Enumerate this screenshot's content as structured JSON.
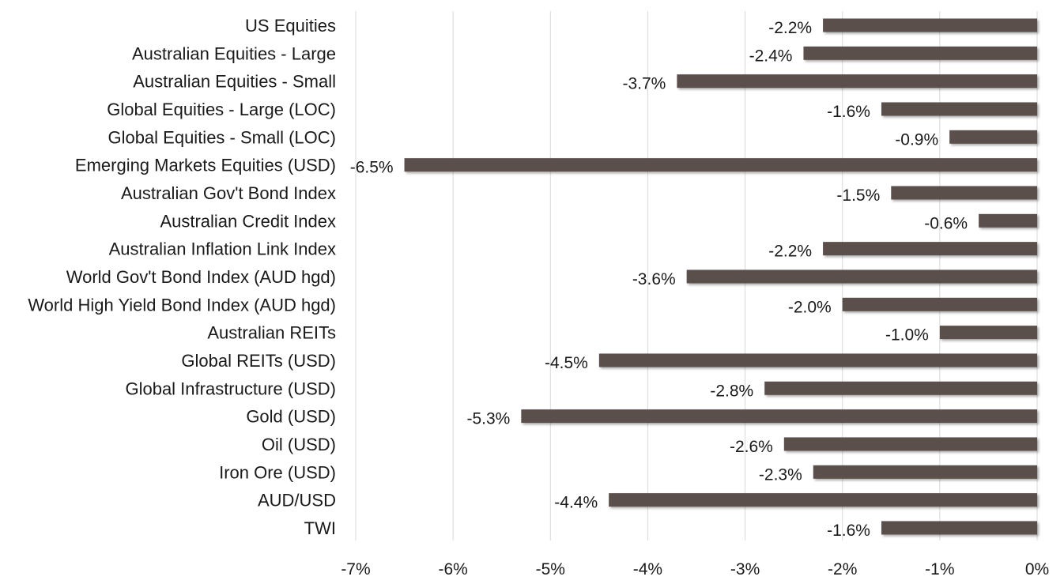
{
  "chart_data": {
    "type": "bar",
    "orientation": "horizontal",
    "categories": [
      "US Equities",
      "Australian Equities - Large",
      "Australian Equities - Small",
      "Global Equities - Large (LOC)",
      "Global Equities - Small (LOC)",
      "Emerging Markets Equities (USD)",
      "Australian Gov't Bond Index",
      "Australian Credit Index",
      "Australian Inflation Link Index",
      "World Gov't Bond Index (AUD hgd)",
      "World High Yield Bond Index (AUD hgd)",
      "Australian REITs",
      "Global REITs (USD)",
      "Global Infrastructure (USD)",
      "Gold (USD)",
      "Oil (USD)",
      "Iron Ore (USD)",
      "AUD/USD",
      "TWI"
    ],
    "values": [
      -2.2,
      -2.4,
      -3.7,
      -1.6,
      -0.9,
      -6.5,
      -1.5,
      -0.6,
      -2.2,
      -3.6,
      -2.0,
      -1.0,
      -4.5,
      -2.8,
      -5.3,
      -2.6,
      -2.3,
      -4.4,
      -1.6
    ],
    "data_labels": [
      "-2.2%",
      "-2.4%",
      "-3.7%",
      "-1.6%",
      "-0.9%",
      "-6.5%",
      "-1.5%",
      "-0.6%",
      "-2.2%",
      "-3.6%",
      "-2.0%",
      "-1.0%",
      "-4.5%",
      "-2.8%",
      "-5.3%",
      "-2.6%",
      "-2.3%",
      "-4.4%",
      "-1.6%"
    ],
    "x_ticks": [
      "-7%",
      "-6%",
      "-5%",
      "-4%",
      "-3%",
      "-2%",
      "-1%",
      "0%"
    ],
    "xlim": [
      -7,
      0
    ],
    "grid": true,
    "title": "",
    "xlabel": "",
    "ylabel": "",
    "bar_color": "#5a4f4c"
  }
}
